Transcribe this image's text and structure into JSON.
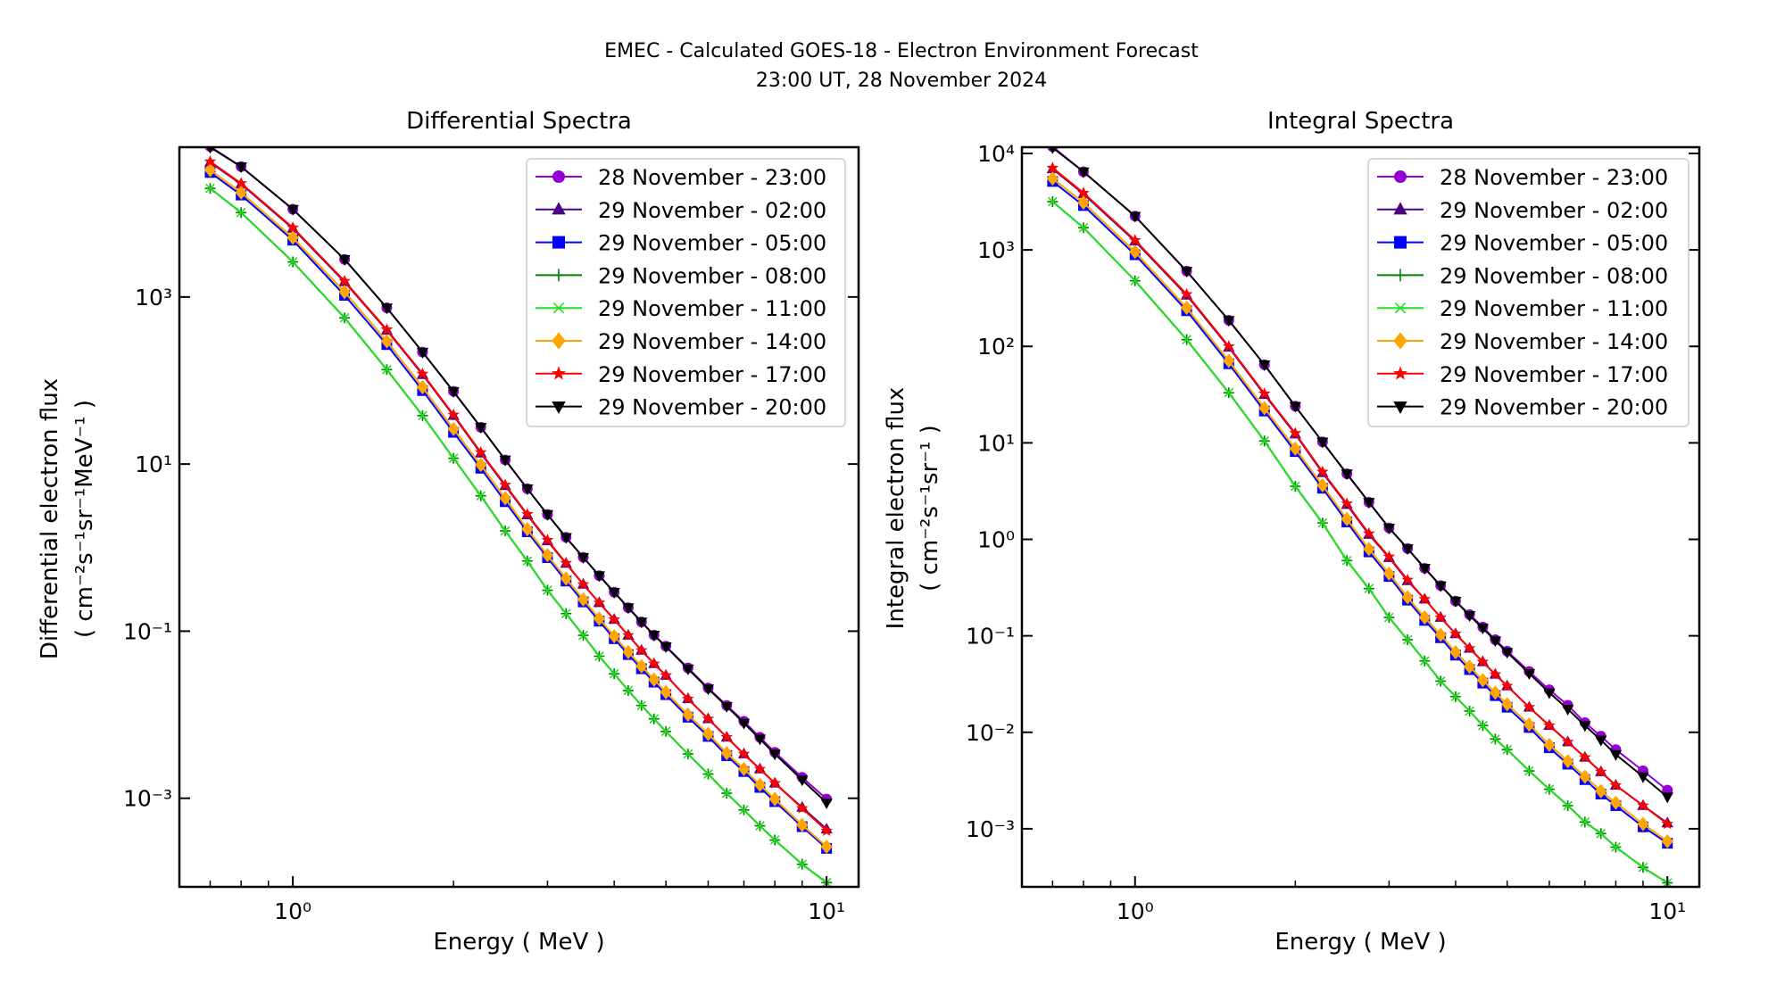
{
  "figure": {
    "title_line1": "EMEC - Calculated GOES-18 - Electron Environment Forecast",
    "title_line2": "23:00 UT, 28 November 2024"
  },
  "chart_data": [
    {
      "type": "line",
      "title": "Differential Spectra",
      "xlabel": "Energy ( MeV )",
      "ylabel_line1": "Differential electron flux",
      "ylabel_line2": "( cm⁻²s⁻¹sr⁻¹MeV⁻¹ )",
      "xscale": "log",
      "yscale": "log",
      "xlim": [
        0.613,
        11.48
      ],
      "ylim": [
        8.7e-05,
        62000.0
      ],
      "xticks": [
        1,
        10
      ],
      "xtick_labels": [
        "10⁰",
        "10¹"
      ],
      "yticks": [
        1000,
        10,
        0.1,
        0.001
      ],
      "ytick_labels": [
        "10³",
        "10¹",
        "10⁻¹",
        "10⁻³"
      ],
      "grid": false,
      "legend_position": "top-right",
      "x": [
        0.7,
        0.8,
        1.0,
        1.25,
        1.5,
        1.75,
        2.0,
        2.25,
        2.5,
        2.75,
        3.0,
        3.25,
        3.5,
        3.75,
        4.0,
        4.25,
        4.5,
        4.75,
        5.0,
        5.5,
        6.0,
        6.5,
        7.0,
        7.5,
        8.0,
        9.0,
        10.0
      ],
      "series": [
        {
          "name": "28 November - 23:00",
          "color": "#9400d3",
          "marker": "circle",
          "log10_values": [
            4.8,
            4.56,
            4.05,
            3.45,
            2.87,
            2.34,
            1.87,
            1.44,
            1.05,
            0.705,
            0.397,
            0.123,
            -0.116,
            -0.336,
            -0.534,
            -0.719,
            -0.89,
            -1.048,
            -1.18,
            -1.44,
            -1.68,
            -1.89,
            -2.08,
            -2.27,
            -2.45,
            -2.75,
            -3.01
          ]
        },
        {
          "name": "29 November - 02:00",
          "color": "#4b0082",
          "marker": "triangle-up",
          "log10_values": [
            4.61,
            4.35,
            3.82,
            3.18,
            2.6,
            2.07,
            1.58,
            1.13,
            0.74,
            0.39,
            0.08,
            -0.19,
            -0.44,
            -0.66,
            -0.86,
            -1.05,
            -1.23,
            -1.39,
            -1.53,
            -1.81,
            -2.05,
            -2.27,
            -2.47,
            -2.65,
            -2.82,
            -3.11,
            -3.37
          ]
        },
        {
          "name": "29 November - 05:00",
          "color": "#0000ff",
          "marker": "square",
          "log10_values": [
            4.49,
            4.22,
            3.68,
            3.02,
            2.43,
            1.88,
            1.38,
            0.95,
            0.55,
            0.19,
            -0.12,
            -0.4,
            -0.65,
            -0.88,
            -1.09,
            -1.28,
            -1.45,
            -1.61,
            -1.76,
            -2.03,
            -2.26,
            -2.49,
            -2.68,
            -2.87,
            -3.04,
            -3.34,
            -3.6
          ]
        },
        {
          "name": "29 November - 08:00",
          "color": "#008000",
          "marker": "plus",
          "log10_values": [
            4.3,
            4.01,
            3.42,
            2.75,
            2.13,
            1.58,
            1.07,
            0.62,
            0.2,
            -0.16,
            -0.51,
            -0.79,
            -1.05,
            -1.3,
            -1.51,
            -1.71,
            -1.89,
            -2.05,
            -2.2,
            -2.47,
            -2.71,
            -2.94,
            -3.14,
            -3.33,
            -3.5,
            -3.79,
            -4.01
          ]
        },
        {
          "name": "29 November - 11:00",
          "color": "#22dd22",
          "marker": "x",
          "log10_values": [
            4.3,
            4.01,
            3.42,
            2.75,
            2.13,
            1.58,
            1.07,
            0.62,
            0.2,
            -0.16,
            -0.51,
            -0.79,
            -1.05,
            -1.3,
            -1.51,
            -1.71,
            -1.89,
            -2.05,
            -2.2,
            -2.47,
            -2.71,
            -2.94,
            -3.14,
            -3.33,
            -3.5,
            -3.79,
            -4.01
          ]
        },
        {
          "name": "29 November - 14:00",
          "color": "#ffa500",
          "marker": "diamond",
          "log10_values": [
            4.52,
            4.25,
            3.71,
            3.06,
            2.47,
            1.92,
            1.42,
            0.99,
            0.59,
            0.22,
            -0.09,
            -0.37,
            -0.62,
            -0.85,
            -1.06,
            -1.25,
            -1.42,
            -1.58,
            -1.73,
            -2.0,
            -2.23,
            -2.46,
            -2.65,
            -2.84,
            -3.01,
            -3.32,
            -3.58
          ]
        },
        {
          "name": "29 November - 17:00",
          "color": "#ff0000",
          "marker": "star",
          "log10_values": [
            4.62,
            4.36,
            3.83,
            3.19,
            2.61,
            2.08,
            1.59,
            1.14,
            0.75,
            0.4,
            0.09,
            -0.185,
            -0.44,
            -0.66,
            -0.86,
            -1.05,
            -1.23,
            -1.39,
            -1.53,
            -1.81,
            -2.05,
            -2.27,
            -2.47,
            -2.65,
            -2.82,
            -3.12,
            -3.39
          ]
        },
        {
          "name": "29 November - 20:00",
          "color": "#000000",
          "marker": "triangle-down",
          "log10_values": [
            4.79,
            4.56,
            4.05,
            3.45,
            2.87,
            2.34,
            1.87,
            1.44,
            1.05,
            0.705,
            0.397,
            0.123,
            -0.116,
            -0.336,
            -0.534,
            -0.719,
            -0.89,
            -1.048,
            -1.185,
            -1.452,
            -1.69,
            -1.9,
            -2.1,
            -2.29,
            -2.47,
            -2.78,
            -3.055
          ]
        }
      ]
    },
    {
      "type": "line",
      "title": "Integral Spectra",
      "xlabel": "Energy ( MeV )",
      "ylabel_line1": "Integral electron flux",
      "ylabel_line2": "( cm⁻²s⁻¹sr⁻¹ )",
      "xscale": "log",
      "yscale": "log",
      "xlim": [
        0.613,
        11.48
      ],
      "ylim": [
        0.00025,
        11600.0
      ],
      "xticks": [
        1,
        10
      ],
      "xtick_labels": [
        "10⁰",
        "10¹"
      ],
      "yticks": [
        10000,
        1000,
        100,
        10,
        1,
        0.1,
        0.01,
        0.001
      ],
      "ytick_labels": [
        "10⁴",
        "10³",
        "10²",
        "10¹",
        "10⁰",
        "10⁻¹",
        "10⁻²",
        "10⁻³"
      ],
      "grid": false,
      "legend_position": "top-right",
      "x": [
        0.7,
        0.8,
        1.0,
        1.25,
        1.5,
        1.75,
        2.0,
        2.25,
        2.5,
        2.75,
        3.0,
        3.25,
        3.5,
        3.75,
        4.0,
        4.25,
        4.5,
        4.75,
        5.0,
        5.5,
        6.0,
        6.5,
        7.0,
        7.5,
        8.0,
        9.0,
        10.0
      ],
      "series": [
        {
          "name": "28 November - 23:00",
          "color": "#9400d3",
          "marker": "circle",
          "log10_values": [
            4.07,
            3.81,
            3.35,
            2.78,
            2.27,
            1.81,
            1.38,
            1.01,
            0.68,
            0.385,
            0.118,
            -0.095,
            -0.3,
            -0.48,
            -0.64,
            -0.78,
            -0.91,
            -1.04,
            -1.16,
            -1.37,
            -1.56,
            -1.72,
            -1.9,
            -2.04,
            -2.18,
            -2.4,
            -2.6
          ]
        },
        {
          "name": "29 November - 02:00",
          "color": "#4b0082",
          "marker": "triangle-up",
          "log10_values": [
            3.84,
            3.58,
            3.09,
            2.53,
            1.99,
            1.5,
            1.09,
            0.69,
            0.36,
            0.05,
            -0.19,
            -0.43,
            -0.62,
            -0.81,
            -0.98,
            -1.13,
            -1.27,
            -1.4,
            -1.52,
            -1.74,
            -1.93,
            -2.1,
            -2.26,
            -2.41,
            -2.55,
            -2.76,
            -2.94
          ]
        },
        {
          "name": "29 November - 05:00",
          "color": "#0000ff",
          "marker": "square",
          "log10_values": [
            3.71,
            3.46,
            2.95,
            2.37,
            1.82,
            1.33,
            0.91,
            0.53,
            0.18,
            -0.13,
            -0.385,
            -0.63,
            -0.84,
            -1.02,
            -1.2,
            -1.35,
            -1.49,
            -1.62,
            -1.74,
            -1.95,
            -2.16,
            -2.33,
            -2.49,
            -2.64,
            -2.76,
            -2.98,
            -3.15
          ]
        },
        {
          "name": "29 November - 08:00",
          "color": "#008000",
          "marker": "plus",
          "log10_values": [
            3.5,
            3.23,
            2.68,
            2.07,
            1.52,
            1.02,
            0.55,
            0.17,
            -0.22,
            -0.51,
            -0.81,
            -1.04,
            -1.26,
            -1.47,
            -1.63,
            -1.78,
            -1.93,
            -2.07,
            -2.18,
            -2.4,
            -2.59,
            -2.76,
            -2.93,
            -3.05,
            -3.19,
            -3.4,
            -3.56
          ]
        },
        {
          "name": "29 November - 11:00",
          "color": "#22dd22",
          "marker": "x",
          "log10_values": [
            3.5,
            3.23,
            2.68,
            2.07,
            1.52,
            1.02,
            0.55,
            0.17,
            -0.22,
            -0.51,
            -0.81,
            -1.04,
            -1.26,
            -1.47,
            -1.63,
            -1.78,
            -1.93,
            -2.07,
            -2.18,
            -2.4,
            -2.59,
            -2.76,
            -2.93,
            -3.05,
            -3.19,
            -3.4,
            -3.56
          ]
        },
        {
          "name": "29 November - 14:00",
          "color": "#ffa500",
          "marker": "diamond",
          "log10_values": [
            3.74,
            3.49,
            2.98,
            2.4,
            1.85,
            1.36,
            0.94,
            0.56,
            0.21,
            -0.1,
            -0.355,
            -0.6,
            -0.81,
            -0.99,
            -1.17,
            -1.32,
            -1.46,
            -1.59,
            -1.71,
            -1.92,
            -2.13,
            -2.3,
            -2.46,
            -2.61,
            -2.73,
            -2.95,
            -3.13
          ]
        },
        {
          "name": "29 November - 17:00",
          "color": "#ff0000",
          "marker": "star",
          "log10_values": [
            3.85,
            3.59,
            3.1,
            2.54,
            2.0,
            1.51,
            1.1,
            0.7,
            0.37,
            0.06,
            -0.18,
            -0.42,
            -0.62,
            -0.81,
            -0.98,
            -1.13,
            -1.27,
            -1.4,
            -1.52,
            -1.74,
            -1.93,
            -2.1,
            -2.26,
            -2.41,
            -2.55,
            -2.76,
            -2.95
          ]
        },
        {
          "name": "29 November - 20:00",
          "color": "#000000",
          "marker": "triangle-down",
          "log10_values": [
            4.06,
            3.81,
            3.35,
            2.78,
            2.27,
            1.81,
            1.38,
            1.01,
            0.68,
            0.385,
            0.118,
            -0.095,
            -0.3,
            -0.48,
            -0.64,
            -0.79,
            -0.92,
            -1.05,
            -1.17,
            -1.39,
            -1.59,
            -1.76,
            -1.93,
            -2.08,
            -2.23,
            -2.46,
            -2.67
          ]
        }
      ]
    }
  ]
}
